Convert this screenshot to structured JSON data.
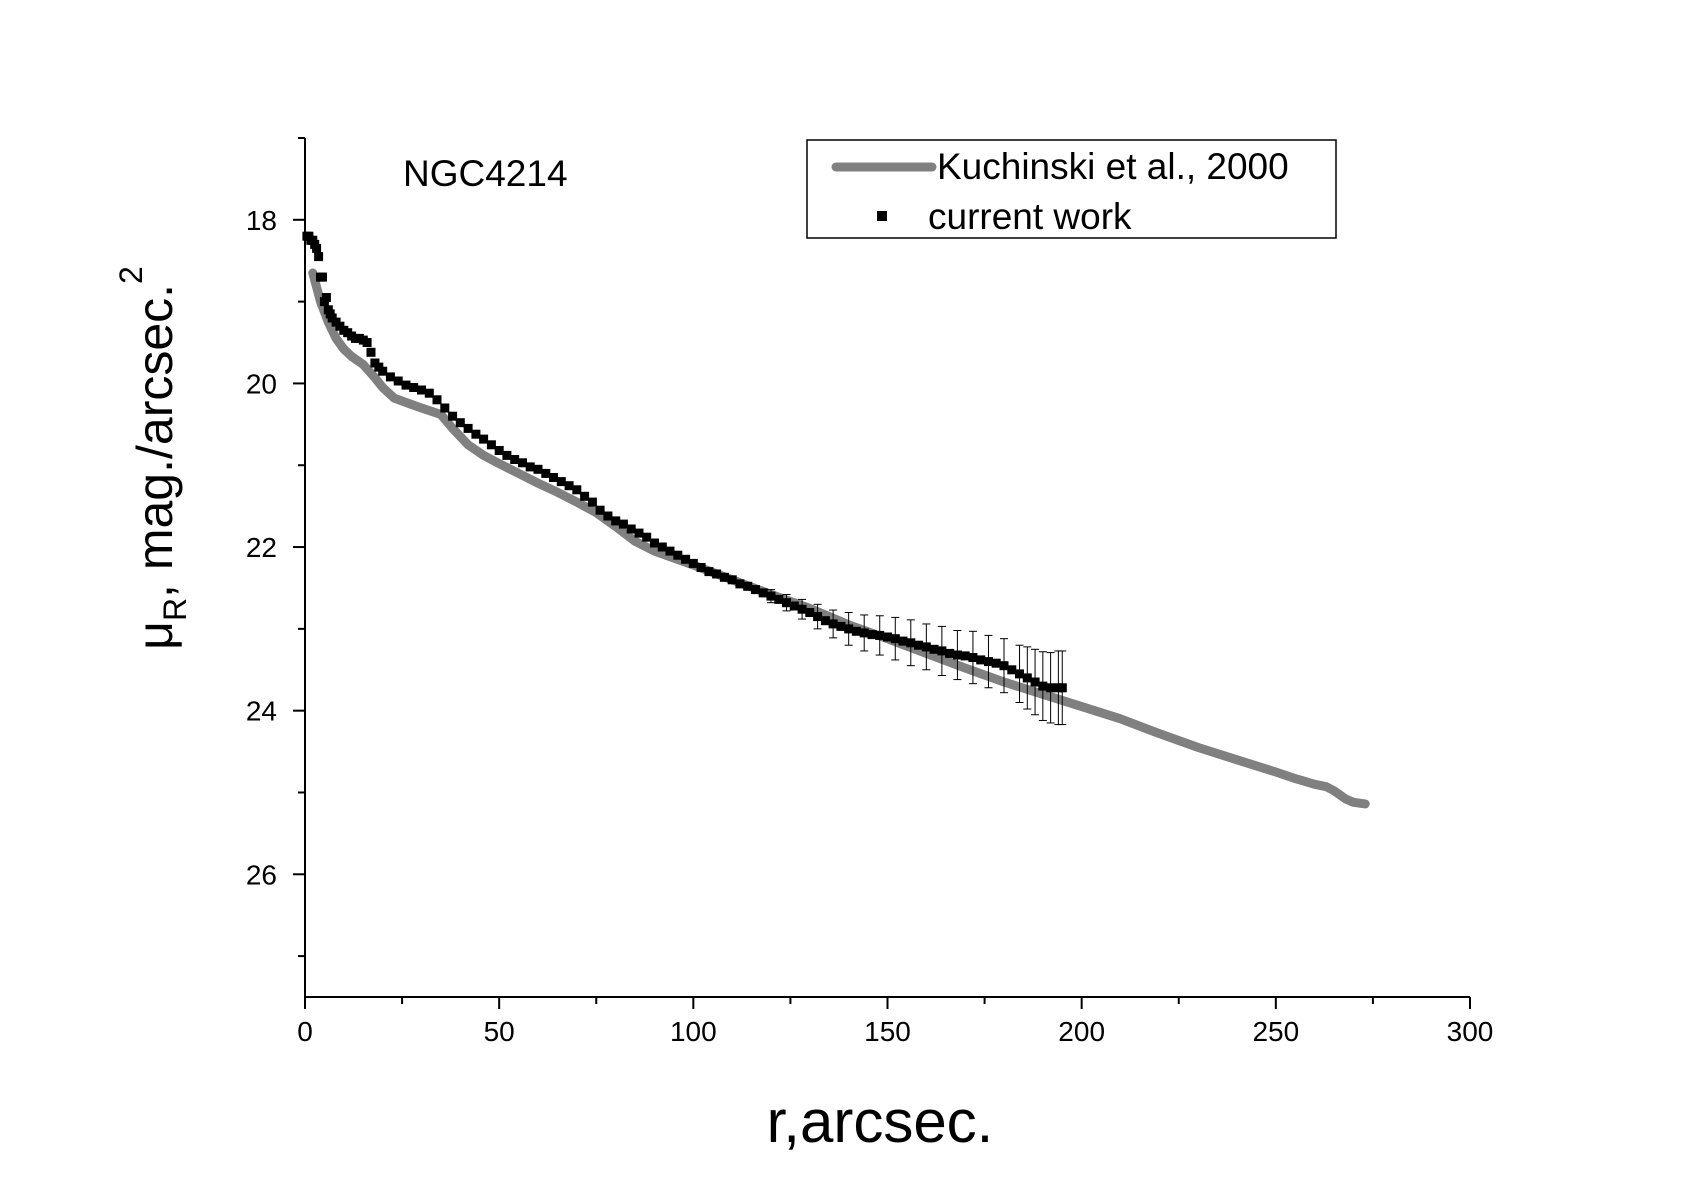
{
  "chart_data": {
    "type": "scatter",
    "annotation": "NGC4214",
    "xlabel": "r,arcsec.",
    "ylabel": {
      "mu": "μ",
      "sub": "R",
      "main": ",  mag./arcsec.",
      "sup": "2"
    },
    "xlim": [
      0,
      300
    ],
    "ylim": [
      27.5,
      17
    ],
    "y_inverted": true,
    "x_ticks": [
      0,
      50,
      100,
      150,
      200,
      250,
      300
    ],
    "y_ticks": [
      18,
      20,
      22,
      24,
      26
    ],
    "grid": false,
    "legend_position": "top-right",
    "series": [
      {
        "name": "Kuchinski et al., 2000",
        "style": "line",
        "color": "#808080",
        "x": [
          2,
          4,
          6,
          8,
          10,
          12,
          15,
          18,
          20,
          23,
          27,
          30,
          35,
          38,
          42,
          46,
          50,
          55,
          60,
          65,
          70,
          75,
          80,
          85,
          90,
          100,
          110,
          120,
          130,
          140,
          150,
          160,
          170,
          180,
          190,
          200,
          210,
          220,
          230,
          240,
          250,
          255,
          260,
          263,
          265,
          268,
          270,
          273
        ],
        "y": [
          18.65,
          19.0,
          19.25,
          19.45,
          19.58,
          19.67,
          19.77,
          19.93,
          20.05,
          20.18,
          20.25,
          20.3,
          20.38,
          20.55,
          20.75,
          20.88,
          20.98,
          21.1,
          21.22,
          21.33,
          21.45,
          21.58,
          21.75,
          21.93,
          22.05,
          22.22,
          22.4,
          22.58,
          22.75,
          22.95,
          23.12,
          23.3,
          23.48,
          23.65,
          23.8,
          23.95,
          24.1,
          24.28,
          24.45,
          24.6,
          24.75,
          24.83,
          24.9,
          24.93,
          24.98,
          25.08,
          25.12,
          25.14
        ]
      },
      {
        "name": "current work",
        "style": "markers",
        "color": "#000000",
        "x": [
          0.5,
          1.0,
          1.5,
          2.0,
          2.5,
          3.0,
          3.5,
          4.0,
          4.5,
          5.0,
          5.5,
          6.0,
          6.5,
          7.0,
          8,
          9,
          10,
          11,
          12,
          13,
          14,
          15,
          16,
          17,
          18,
          19,
          20,
          22,
          24,
          26,
          28,
          30,
          32,
          34,
          36,
          38,
          40,
          42,
          44,
          46,
          48,
          50,
          52,
          54,
          56,
          58,
          60,
          62,
          64,
          66,
          68,
          70,
          72,
          74,
          76,
          78,
          80,
          82,
          84,
          86,
          88,
          90,
          92,
          94,
          96,
          98,
          100,
          102,
          104,
          106,
          108,
          110,
          112,
          114,
          116,
          118,
          120,
          122,
          124,
          126,
          128,
          130,
          132,
          134,
          136,
          138,
          140,
          142,
          144,
          146,
          148,
          150,
          152,
          154,
          156,
          158,
          160,
          162,
          164,
          166,
          168,
          170,
          172,
          174,
          176,
          178,
          180,
          182,
          184,
          186,
          188,
          190,
          192,
          194,
          195
        ],
        "y": [
          18.2,
          18.2,
          18.25,
          18.25,
          18.3,
          18.35,
          18.45,
          18.7,
          18.7,
          19.0,
          18.95,
          19.1,
          19.15,
          19.2,
          19.25,
          19.3,
          19.35,
          19.38,
          19.42,
          19.45,
          19.45,
          19.47,
          19.5,
          19.62,
          19.75,
          19.8,
          19.85,
          19.92,
          19.97,
          20.02,
          20.05,
          20.08,
          20.12,
          20.2,
          20.3,
          20.4,
          20.48,
          20.55,
          20.62,
          20.68,
          20.75,
          20.82,
          20.88,
          20.93,
          20.97,
          21.02,
          21.05,
          21.1,
          21.15,
          21.2,
          21.25,
          21.3,
          21.38,
          21.45,
          21.55,
          21.62,
          21.68,
          21.72,
          21.78,
          21.83,
          21.88,
          21.95,
          22.0,
          22.05,
          22.1,
          22.15,
          22.2,
          22.25,
          22.3,
          22.33,
          22.37,
          22.4,
          22.45,
          22.48,
          22.52,
          22.56,
          22.6,
          22.64,
          22.68,
          22.72,
          22.76,
          22.8,
          22.85,
          22.9,
          22.94,
          22.97,
          23.0,
          23.03,
          23.05,
          23.07,
          23.08,
          23.1,
          23.12,
          23.15,
          23.17,
          23.2,
          23.22,
          23.25,
          23.27,
          23.3,
          23.32,
          23.33,
          23.35,
          23.38,
          23.4,
          23.42,
          23.45,
          23.5,
          23.55,
          23.6,
          23.65,
          23.7,
          23.72,
          23.72,
          23.72
        ],
        "error_bars": {
          "x": [
            120,
            124,
            128,
            132,
            136,
            140,
            144,
            148,
            152,
            156,
            160,
            164,
            168,
            172,
            176,
            180,
            184,
            186,
            188,
            190,
            192,
            194,
            195
          ],
          "err": [
            0.08,
            0.1,
            0.12,
            0.15,
            0.17,
            0.2,
            0.22,
            0.24,
            0.26,
            0.28,
            0.28,
            0.3,
            0.3,
            0.32,
            0.32,
            0.33,
            0.35,
            0.38,
            0.4,
            0.42,
            0.43,
            0.45,
            0.45
          ]
        }
      }
    ]
  }
}
